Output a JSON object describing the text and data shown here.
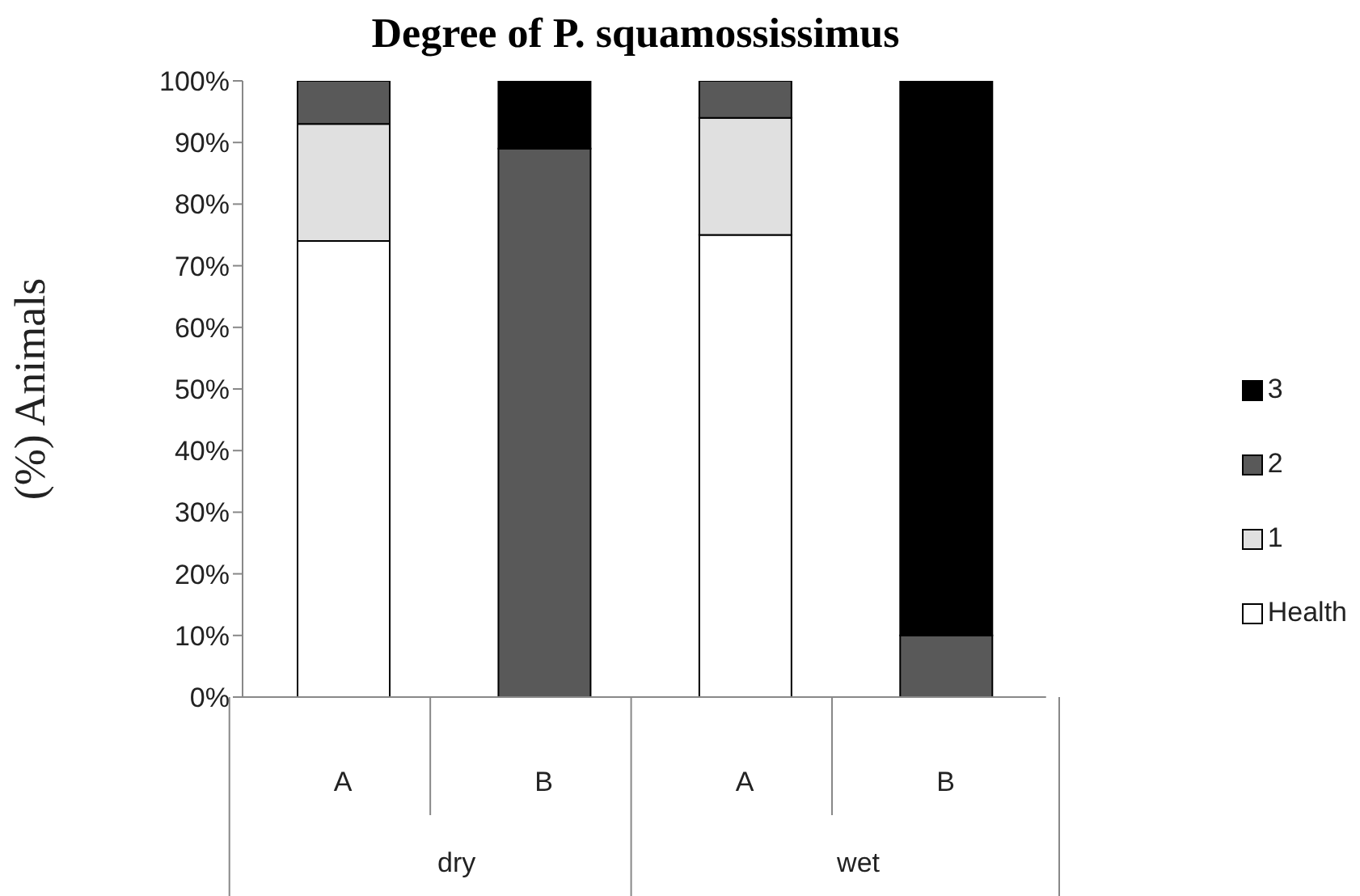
{
  "chart_data": {
    "type": "bar",
    "title": "Degree of P. squamossissimus",
    "ylabel": "(%) Animals",
    "categories": [
      "A",
      "B",
      "A",
      "B"
    ],
    "stacked": true,
    "series": [
      {
        "name": "Health",
        "color": "#ffffff",
        "values": [
          74,
          0,
          75,
          0
        ]
      },
      {
        "name": "1",
        "color": "#e0e0e0",
        "values": [
          19,
          0,
          19,
          0
        ]
      },
      {
        "name": "2",
        "color": "#595959",
        "values": [
          7,
          89,
          6,
          10
        ]
      },
      {
        "name": "3",
        "color": "#000000",
        "values": [
          0,
          11,
          0,
          90
        ]
      }
    ],
    "ylim": [
      0,
      100
    ],
    "yticks": [
      {
        "value": 0,
        "label": "0%"
      },
      {
        "value": 10,
        "label": "10%"
      },
      {
        "value": 20,
        "label": "20%"
      },
      {
        "value": 30,
        "label": "30%"
      },
      {
        "value": 40,
        "label": "40%"
      },
      {
        "value": 50,
        "label": "50%"
      },
      {
        "value": 60,
        "label": "60%"
      },
      {
        "value": 70,
        "label": "70%"
      },
      {
        "value": 80,
        "label": "80%"
      },
      {
        "value": 90,
        "label": "90%"
      },
      {
        "value": 100,
        "label": "100%"
      }
    ],
    "annotations": [
      "dry",
      "wet"
    ],
    "legend": "right",
    "grid": false
  }
}
